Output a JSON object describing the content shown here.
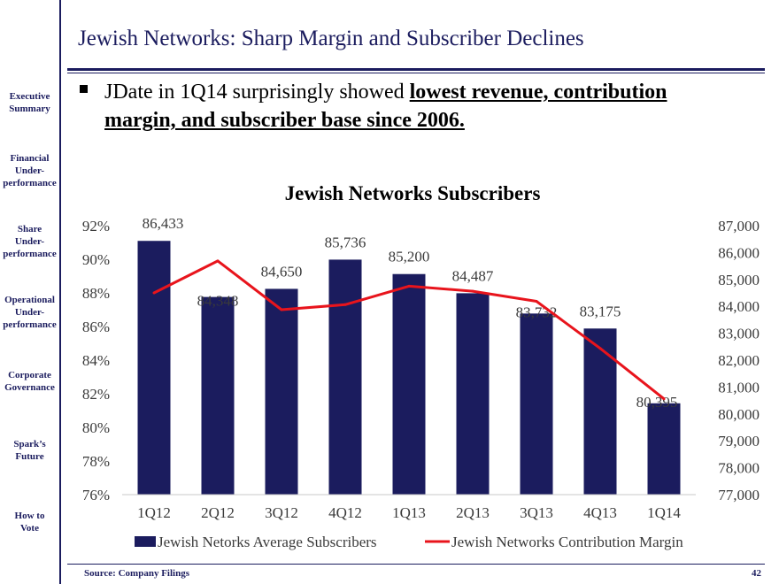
{
  "sidebar": {
    "items": [
      {
        "label": "Executive\nSummary"
      },
      {
        "label": "Financial\nUnder-\nperformance"
      },
      {
        "label": "Share\nUnder-\nperformance"
      },
      {
        "label": "Operational\nUnder-\nperformance"
      },
      {
        "label": "Corporate\nGovernance"
      },
      {
        "label": "Spark’s\nFuture"
      },
      {
        "label": "How to\nVote"
      }
    ]
  },
  "header": {
    "title": "Jewish Networks: Sharp Margin and Subscriber Declines"
  },
  "bullet": {
    "prefix": "JDate in 1Q14 surprisingly showed ",
    "highlight": "lowest revenue, contribution margin, and subscriber base since 2006."
  },
  "colors": {
    "navy": "#1b1c5e",
    "bar": "#1b1c5e",
    "line": "#e8141c"
  },
  "chart_data": {
    "type": "bar",
    "title": "Jewish Networks Subscribers",
    "categories": [
      "1Q12",
      "2Q12",
      "3Q12",
      "4Q12",
      "1Q13",
      "2Q13",
      "3Q13",
      "4Q13",
      "1Q14"
    ],
    "series": [
      {
        "name": "Jewish Netorks Average Subscribers",
        "type": "bar",
        "axis": "right",
        "values": [
          86433,
          84348,
          84650,
          85736,
          85200,
          84487,
          83732,
          83175,
          80395
        ],
        "labels": [
          "86,433",
          "84,348",
          "84,650",
          "85,736",
          "85,200",
          "84,487",
          "83,732",
          "83,175",
          "80,395"
        ]
      },
      {
        "name": "Jewish Networks Contribution Margin",
        "type": "line",
        "axis": "left",
        "values": [
          88.0,
          89.9,
          87.0,
          87.3,
          88.4,
          88.1,
          87.5,
          84.7,
          81.7
        ]
      }
    ],
    "left_axis": {
      "min": 76,
      "max": 92,
      "step": 2,
      "ticks": [
        "76%",
        "78%",
        "80%",
        "82%",
        "84%",
        "86%",
        "88%",
        "90%",
        "92%"
      ]
    },
    "right_axis": {
      "min": 77000,
      "max": 87000,
      "step": 1000,
      "ticks": [
        "77,000",
        "78,000",
        "79,000",
        "80,000",
        "81,000",
        "82,000",
        "83,000",
        "84,000",
        "85,000",
        "86,000",
        "87,000"
      ]
    },
    "legend_position": "bottom"
  },
  "footer": {
    "source": "Source: Company Filings",
    "page": "42"
  }
}
